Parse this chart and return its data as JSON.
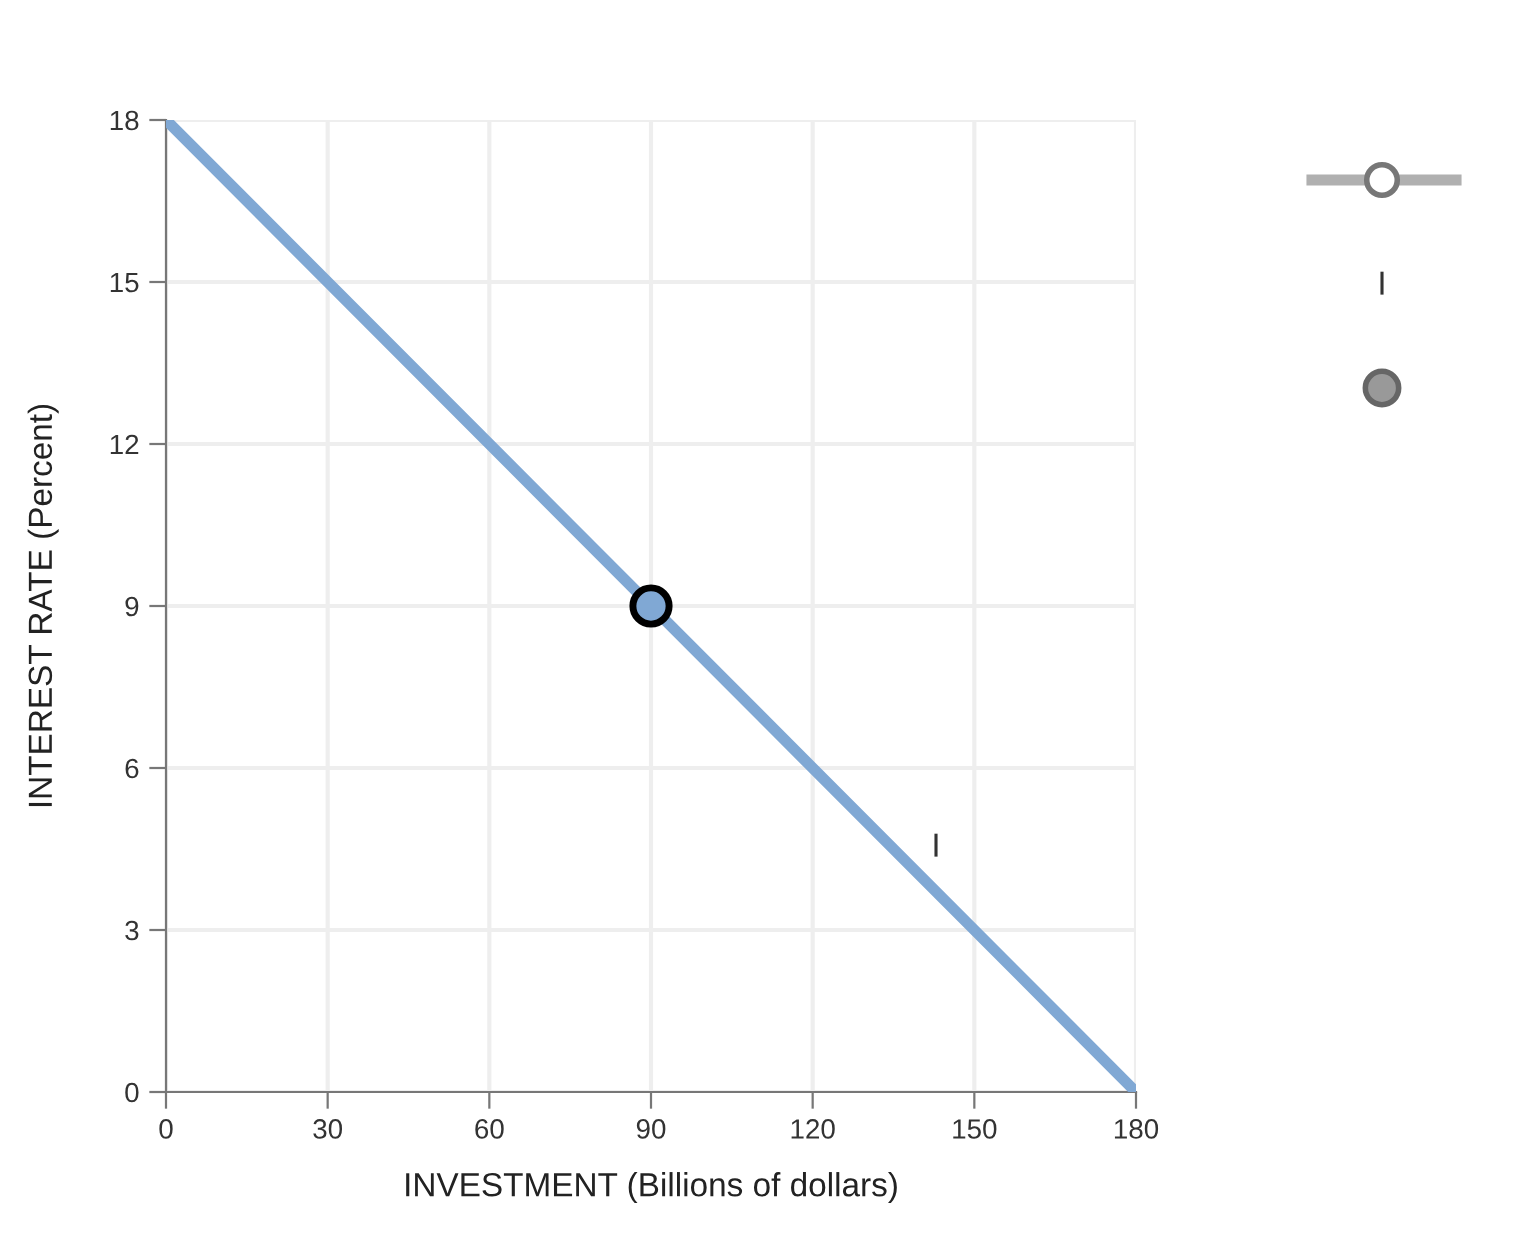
{
  "chart_data": {
    "type": "line",
    "xlabel": "INVESTMENT (Billions of dollars)",
    "ylabel": "INTEREST RATE (Percent)",
    "series": [
      {
        "color": "#80a8d4",
        "x": [
          0,
          180
        ],
        "values": [
          18,
          0
        ],
        "marker": "none"
      },
      {
        "type": "scatter",
        "color": "#80a8d4",
        "x": [
          90
        ],
        "values": [
          9
        ],
        "marker": "circle"
      }
    ],
    "xlim": [
      0,
      180
    ],
    "xticks": [
      0,
      30,
      60,
      90,
      120,
      150,
      180
    ],
    "ylim": [
      0,
      18
    ],
    "yticks": [
      0,
      3,
      6,
      9,
      12,
      15,
      18
    ],
    "grid": true,
    "annotations": [
      "I",
      "I"
    ]
  }
}
